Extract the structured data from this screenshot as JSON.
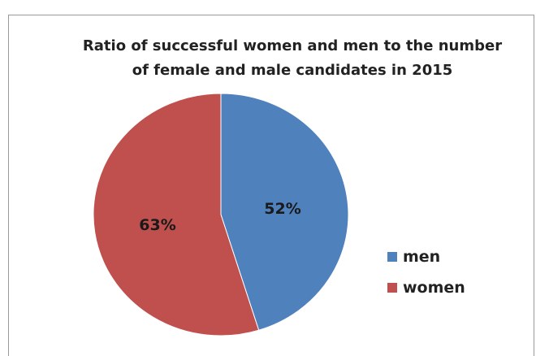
{
  "chart_data": {
    "type": "pie",
    "title_lines": [
      "Ratio of successful women and men to the number",
      "of female and male candidates in 2015"
    ],
    "slices": [
      {
        "name": "men",
        "value": 52,
        "label": "52%",
        "color": "#4f81bd",
        "share": 0.452
      },
      {
        "name": "women",
        "value": 63,
        "label": "63%",
        "color": "#c0504d",
        "share": 0.548
      }
    ],
    "legend_position": "right"
  }
}
